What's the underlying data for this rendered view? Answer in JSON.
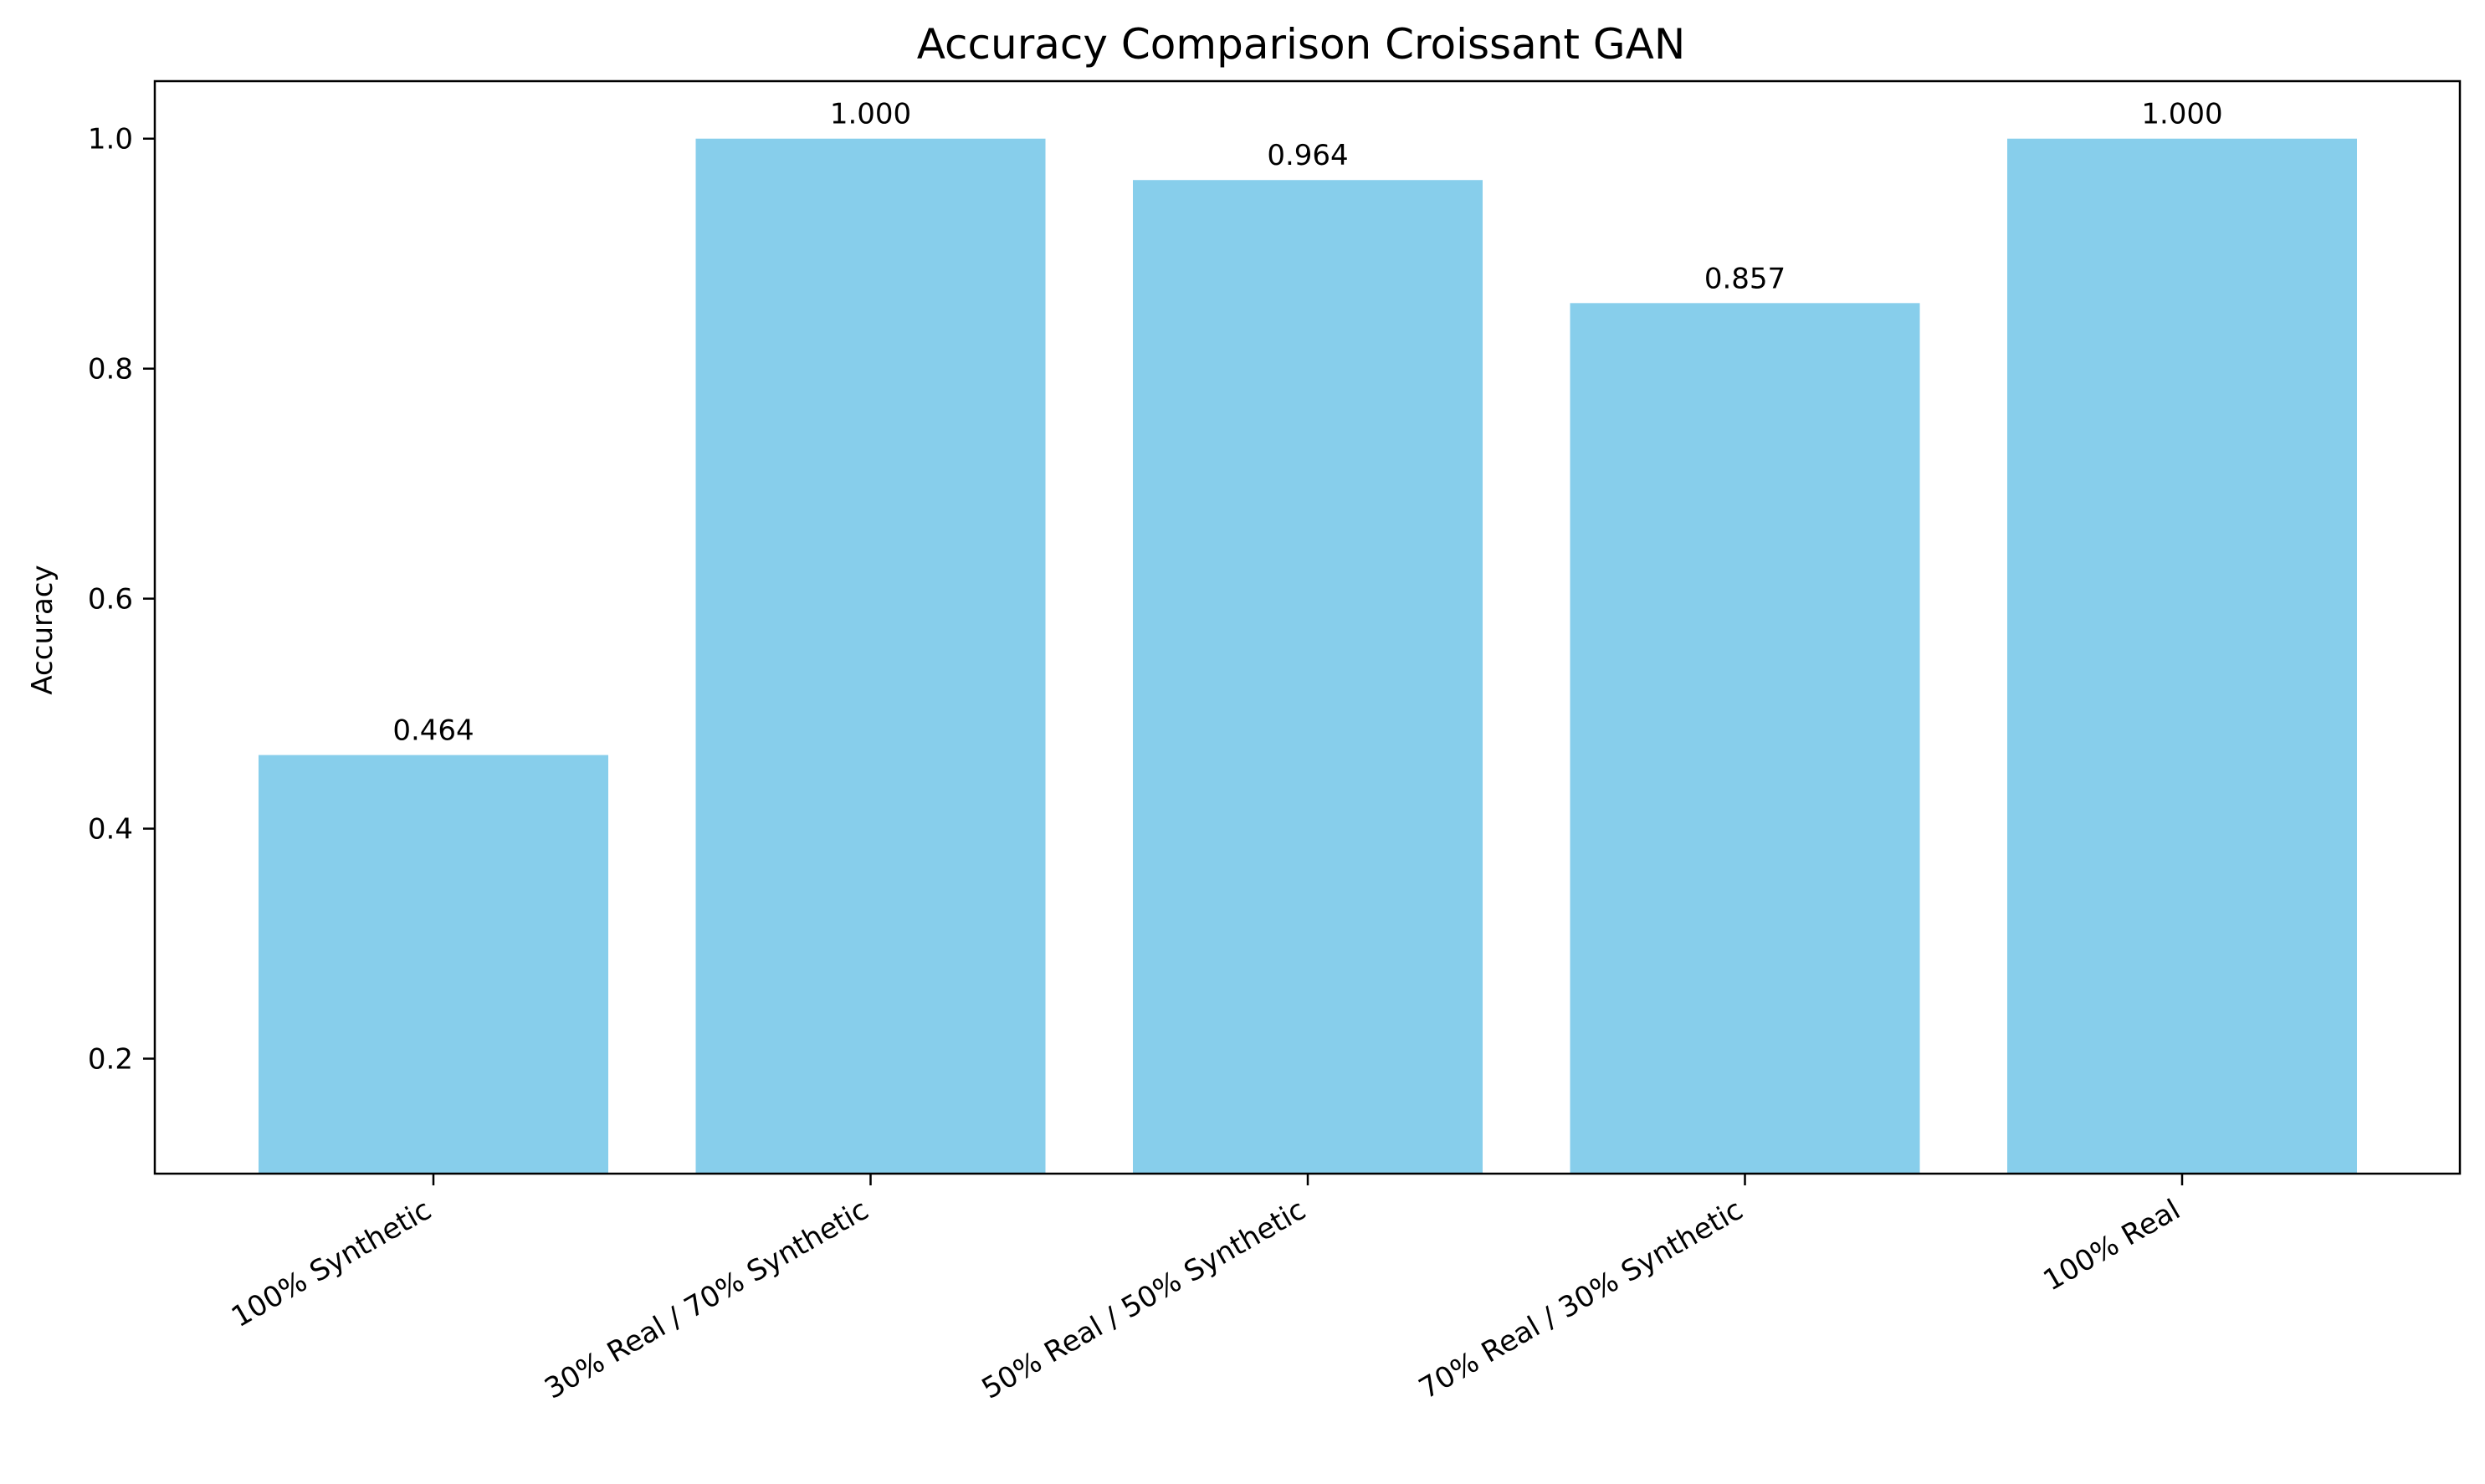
{
  "chart_data": {
    "type": "bar",
    "title": "Accuracy Comparison Croissant GAN",
    "xlabel": "",
    "ylabel": "Accuracy",
    "categories": [
      "100% Synthetic",
      "30% Real / 70% Synthetic",
      "50% Real / 50% Synthetic",
      "70% Real / 30% Synthetic",
      "100% Real"
    ],
    "values": [
      0.464,
      1.0,
      0.964,
      0.857,
      1.0
    ],
    "data_labels": [
      "0.464",
      "1.000",
      "0.964",
      "0.857",
      "1.000"
    ],
    "ylim": [
      0.1,
      1.05
    ],
    "yticks": [
      0.2,
      0.4,
      0.6,
      0.8,
      1.0
    ],
    "ytick_labels": [
      "0.2",
      "0.4",
      "0.6",
      "0.8",
      "1.0"
    ],
    "bar_color": "#87ceeb",
    "grid": false,
    "legend": "none"
  }
}
